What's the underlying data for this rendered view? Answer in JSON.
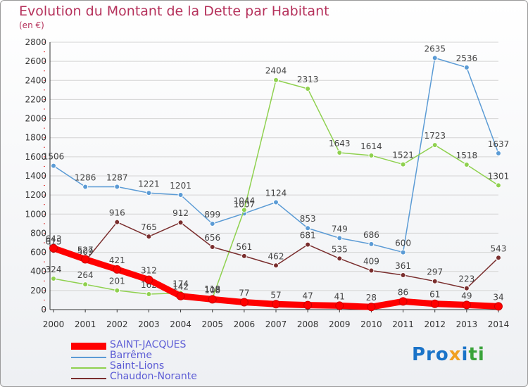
{
  "header": {
    "title": "Evolution du Montant de la Dette par Habitant",
    "subtitle": "(en €)"
  },
  "logo": {
    "text": "Proxiti",
    "colors": [
      "#1a73c8",
      "#f0a020",
      "#3aa33a"
    ]
  },
  "chart_data": {
    "type": "line",
    "title": "Evolution du Montant de la Dette par Habitant",
    "subtitle": "(en €)",
    "x": [
      "2000",
      "2001",
      "2002",
      "2003",
      "2004",
      "2005",
      "2006",
      "2007",
      "2008",
      "2009",
      "2010",
      "2011",
      "2012",
      "2013",
      "2014"
    ],
    "ylim": [
      0,
      2800
    ],
    "yticks": [
      0,
      200,
      400,
      600,
      800,
      1000,
      1200,
      1400,
      1600,
      1800,
      2000,
      2200,
      2400,
      2600,
      2800
    ],
    "grid": "horizontal",
    "legend_position": "bottom-left",
    "series": [
      {
        "name": "Barrême",
        "color": "#5b9bd5",
        "values": [
          1506,
          1286,
          1287,
          1221,
          1201,
          899,
          1007,
          1124,
          853,
          749,
          686,
          600,
          2635,
          2536,
          1637
        ],
        "labels": [
          "1506",
          "1286",
          "1287",
          "1221",
          "1201",
          "899",
          "1007",
          "1124",
          "853",
          "749",
          "686",
          "600",
          "2635",
          "2536",
          "1637"
        ]
      },
      {
        "name": "Saint-Lions",
        "color": "#8fd14f",
        "values": [
          324,
          264,
          201,
          162,
          174,
          118,
          1044,
          2404,
          2313,
          1643,
          1614,
          1521,
          1723,
          1518,
          1301
        ],
        "labels": [
          "324",
          "264",
          "201",
          "162",
          "174",
          "118",
          "1044",
          "2404",
          "2313",
          "1643",
          "1614",
          "1521",
          "1723",
          "1518",
          "1301"
        ]
      },
      {
        "name": "Chaudon-Norante",
        "color": "#7a2e2e",
        "values": [
          615,
          509,
          916,
          765,
          912,
          656,
          561,
          462,
          681,
          535,
          409,
          361,
          297,
          223,
          543
        ],
        "labels": [
          "615",
          "509",
          "916",
          "765",
          "912",
          "656",
          "561",
          "462",
          "681",
          "535",
          "409",
          "361",
          "297",
          "223",
          "543"
        ]
      },
      {
        "name": "SAINT-JACQUES",
        "color": "#ff0000",
        "values": [
          643,
          527,
          421,
          312,
          142,
          108,
          77,
          57,
          47,
          41,
          28,
          86,
          61,
          49,
          34
        ],
        "labels": [
          "643",
          "527",
          "421",
          "312",
          "142",
          "108",
          "77",
          "57",
          "47",
          "41",
          "28",
          "86",
          "61",
          "49",
          "34"
        ]
      }
    ],
    "legend": [
      {
        "name": "SAINT-JACQUES",
        "color": "#ff0000"
      },
      {
        "name": "Barrême",
        "color": "#5b9bd5"
      },
      {
        "name": "Saint-Lions",
        "color": "#8fd14f"
      },
      {
        "name": "Chaudon-Norante",
        "color": "#7a2e2e"
      }
    ]
  }
}
